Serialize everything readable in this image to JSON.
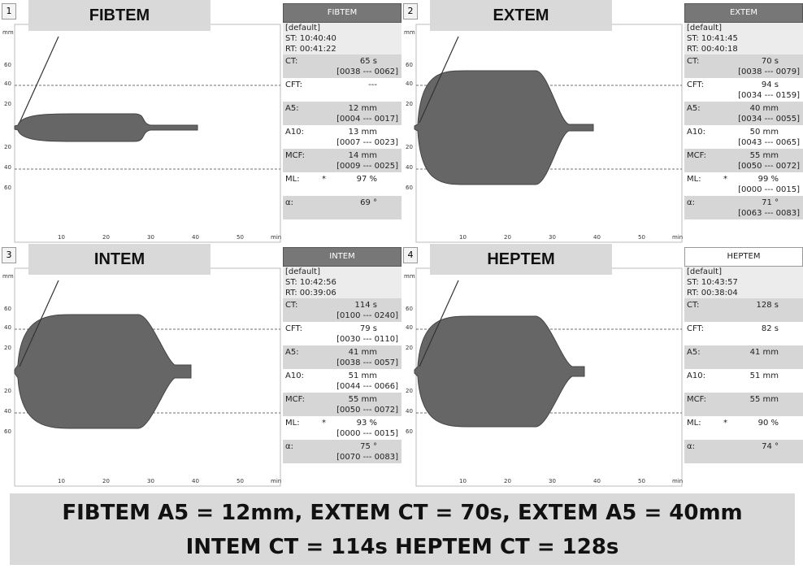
{
  "axes": {
    "y_unit": "mm",
    "y_labels": [
      "60",
      "40",
      "20",
      "20",
      "40",
      "60"
    ],
    "x_labels": [
      "10",
      "20",
      "30",
      "40",
      "50"
    ],
    "x_unit": "min"
  },
  "panels": [
    {
      "number": "1",
      "label": "FIBTEM",
      "header": "FIBTEM",
      "profile": "[default]",
      "st": "ST: 10:40:40",
      "rt": "RT: 00:41:22",
      "params": [
        {
          "name": "CT:",
          "value": "65 s",
          "range": "[0038 --- 0062]"
        },
        {
          "name": "CFT:",
          "value": "---"
        },
        {
          "name": "A5:",
          "value": "12 mm",
          "range": "[0004 --- 0017]"
        },
        {
          "name": "A10:",
          "value": "13 mm",
          "range": "[0007 --- 0023]"
        },
        {
          "name": "MCF:",
          "value": "14 mm",
          "range": "[0009 --- 0025]"
        },
        {
          "name": "ML:",
          "flag": "*",
          "value": "97 %"
        },
        {
          "name": "α:",
          "value": "69 °"
        }
      ]
    },
    {
      "number": "2",
      "label": "EXTEM",
      "header": "EXTEM",
      "profile": "[default]",
      "st": "ST: 10:41:45",
      "rt": "RT: 00:40:18",
      "params": [
        {
          "name": "CT:",
          "value": "70 s",
          "range": "[0038 --- 0079]"
        },
        {
          "name": "CFT:",
          "value": "94 s",
          "range": "[0034 --- 0159]"
        },
        {
          "name": "A5:",
          "value": "40 mm",
          "range": "[0034 --- 0055]"
        },
        {
          "name": "A10:",
          "value": "50 mm",
          "range": "[0043 --- 0065]"
        },
        {
          "name": "MCF:",
          "value": "55 mm",
          "range": "[0050 --- 0072]"
        },
        {
          "name": "ML:",
          "flag": "*",
          "value": "99 %",
          "range": "[0000 --- 0015]"
        },
        {
          "name": "α:",
          "value": "71 °",
          "range": "[0063 --- 0083]"
        }
      ]
    },
    {
      "number": "3",
      "label": "INTEM",
      "header": "INTEM",
      "profile": "[default]",
      "st": "ST: 10:42:56",
      "rt": "RT: 00:39:06",
      "params": [
        {
          "name": "CT:",
          "value": "114 s",
          "range": "[0100 --- 0240]"
        },
        {
          "name": "CFT:",
          "value": "79 s",
          "range": "[0030 --- 0110]"
        },
        {
          "name": "A5:",
          "value": "41 mm",
          "range": "[0038 --- 0057]"
        },
        {
          "name": "A10:",
          "value": "51 mm",
          "range": "[0044 --- 0066]"
        },
        {
          "name": "MCF:",
          "value": "55 mm",
          "range": "[0050 --- 0072]"
        },
        {
          "name": "ML:",
          "flag": "*",
          "value": "93 %",
          "range": "[0000 --- 0015]"
        },
        {
          "name": "α:",
          "value": "75 °",
          "range": "[0070 --- 0083]"
        }
      ]
    },
    {
      "number": "4",
      "label": "HEPTEM",
      "header": "HEPTEM",
      "profile": "[default]",
      "st": "ST: 10:43:57",
      "rt": "RT: 00:38:04",
      "params": [
        {
          "name": "CT:",
          "value": "128 s"
        },
        {
          "name": "CFT:",
          "value": "82 s"
        },
        {
          "name": "A5:",
          "value": "41 mm"
        },
        {
          "name": "A10:",
          "value": "51 mm"
        },
        {
          "name": "MCF:",
          "value": "55 mm"
        },
        {
          "name": "ML:",
          "flag": "*",
          "value": "90 %"
        },
        {
          "name": "α:",
          "value": "74 °"
        }
      ]
    }
  ],
  "caption": {
    "lines": [
      "FIBTEM A5 = 12mm, EXTEM CT = 70s, EXTEM A5 = 40mm",
      "INTEM CT = 114s HEPTEM CT = 128s"
    ]
  }
}
